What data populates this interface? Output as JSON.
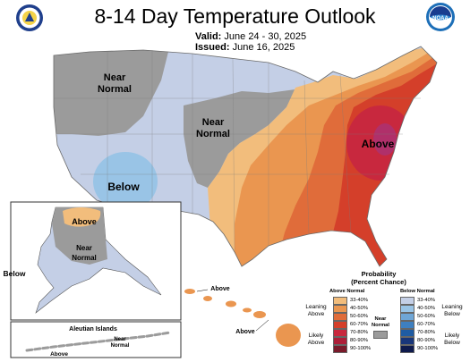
{
  "header": {
    "title": "8-14 Day Temperature Outlook",
    "valid_label": "Valid:",
    "valid_value": "June 24 - 30, 2025",
    "issued_label": "Issued:",
    "issued_value": "June 16, 2025",
    "left_logo": "us-department-of-commerce-seal",
    "right_logo": "noaa-logo",
    "right_logo_text": "NOAA"
  },
  "map": {
    "labels": {
      "near_normal_west": [
        "Near",
        "Normal"
      ],
      "near_normal_central": [
        "Near",
        "Normal"
      ],
      "below_southwest": "Below",
      "above_east": "Above",
      "alaska_above": "Above",
      "alaska_near_normal": [
        "Near",
        "Normal"
      ],
      "alaska_below": "Below",
      "aleutian_title": "Aleutian Islands",
      "aleutian_near_normal": [
        "Near",
        "Normal"
      ],
      "aleutian_above": "Above",
      "hawaii_above_1": "Above",
      "hawaii_above_2": "Above"
    },
    "colors": {
      "near_normal": "#9b9b9b",
      "below_33_40": "#c4cfe6",
      "below_40_50": "#99c4e6",
      "above_33_40": "#f2bd7c",
      "above_40_50": "#ea9650",
      "above_50_60": "#e06c3a",
      "above_60_70": "#d43f2a",
      "above_70_80": "#c8283e",
      "above_80_90": "#ad1e38",
      "above_90_100": "#7a1a2a"
    }
  },
  "legend": {
    "title_line1": "Probability",
    "title_line2": "(Percent Chance)",
    "above_header": "Above Normal",
    "below_header": "Below Normal",
    "above_bins": [
      {
        "label": "33-40%",
        "color": "#f2bd7c"
      },
      {
        "label": "40-50%",
        "color": "#ea9650"
      },
      {
        "label": "50-60%",
        "color": "#e06c3a"
      },
      {
        "label": "60-70%",
        "color": "#d43f2a"
      },
      {
        "label": "70-80%",
        "color": "#c8283e"
      },
      {
        "label": "80-90%",
        "color": "#ad1e38"
      },
      {
        "label": "90-100%",
        "color": "#7a1a2a"
      }
    ],
    "below_bins": [
      {
        "label": "33-40%",
        "color": "#c4cfe6"
      },
      {
        "label": "40-50%",
        "color": "#99c4e6"
      },
      {
        "label": "50-60%",
        "color": "#6fa6d6"
      },
      {
        "label": "60-70%",
        "color": "#3e7fbf"
      },
      {
        "label": "70-80%",
        "color": "#1f5ca3"
      },
      {
        "label": "80-90%",
        "color": "#18367a"
      },
      {
        "label": "90-100%",
        "color": "#0e1a4d"
      }
    ],
    "leaning_above": [
      "Leaning",
      "Above"
    ],
    "likely_above": [
      "Likely",
      "Above"
    ],
    "leaning_below": [
      "Leaning",
      "Below"
    ],
    "likely_below": [
      "Likely",
      "Below"
    ],
    "near_normal": [
      "Near",
      "Normal"
    ]
  }
}
